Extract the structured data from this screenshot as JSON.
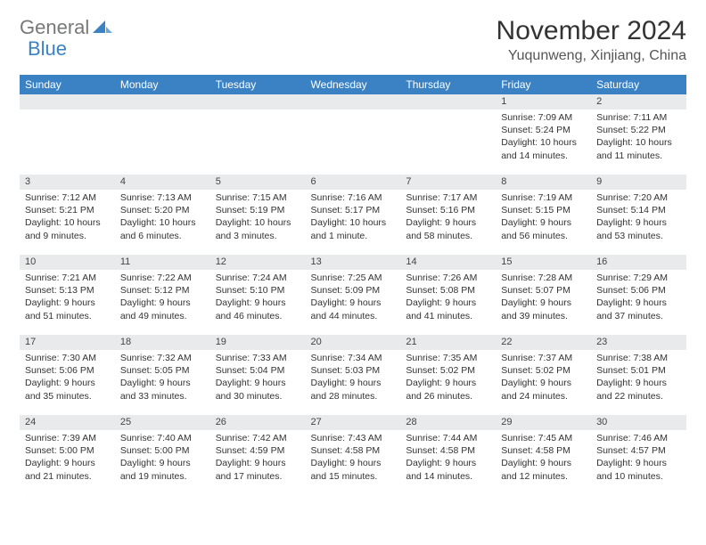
{
  "logo": {
    "text1": "General",
    "text2": "Blue"
  },
  "title": "November 2024",
  "location": "Yuqunweng, Xinjiang, China",
  "colors": {
    "header_bg": "#3b82c4",
    "header_text": "#ffffff",
    "daynum_bg": "#e8eaec",
    "text": "#333333",
    "logo_gray": "#76787a",
    "logo_blue": "#3b82c4"
  },
  "weekdays": [
    "Sunday",
    "Monday",
    "Tuesday",
    "Wednesday",
    "Thursday",
    "Friday",
    "Saturday"
  ],
  "weeks": [
    [
      {
        "n": "",
        "sr": "",
        "ss": "",
        "dl": ""
      },
      {
        "n": "",
        "sr": "",
        "ss": "",
        "dl": ""
      },
      {
        "n": "",
        "sr": "",
        "ss": "",
        "dl": ""
      },
      {
        "n": "",
        "sr": "",
        "ss": "",
        "dl": ""
      },
      {
        "n": "",
        "sr": "",
        "ss": "",
        "dl": ""
      },
      {
        "n": "1",
        "sr": "Sunrise: 7:09 AM",
        "ss": "Sunset: 5:24 PM",
        "dl": "Daylight: 10 hours and 14 minutes."
      },
      {
        "n": "2",
        "sr": "Sunrise: 7:11 AM",
        "ss": "Sunset: 5:22 PM",
        "dl": "Daylight: 10 hours and 11 minutes."
      }
    ],
    [
      {
        "n": "3",
        "sr": "Sunrise: 7:12 AM",
        "ss": "Sunset: 5:21 PM",
        "dl": "Daylight: 10 hours and 9 minutes."
      },
      {
        "n": "4",
        "sr": "Sunrise: 7:13 AM",
        "ss": "Sunset: 5:20 PM",
        "dl": "Daylight: 10 hours and 6 minutes."
      },
      {
        "n": "5",
        "sr": "Sunrise: 7:15 AM",
        "ss": "Sunset: 5:19 PM",
        "dl": "Daylight: 10 hours and 3 minutes."
      },
      {
        "n": "6",
        "sr": "Sunrise: 7:16 AM",
        "ss": "Sunset: 5:17 PM",
        "dl": "Daylight: 10 hours and 1 minute."
      },
      {
        "n": "7",
        "sr": "Sunrise: 7:17 AM",
        "ss": "Sunset: 5:16 PM",
        "dl": "Daylight: 9 hours and 58 minutes."
      },
      {
        "n": "8",
        "sr": "Sunrise: 7:19 AM",
        "ss": "Sunset: 5:15 PM",
        "dl": "Daylight: 9 hours and 56 minutes."
      },
      {
        "n": "9",
        "sr": "Sunrise: 7:20 AM",
        "ss": "Sunset: 5:14 PM",
        "dl": "Daylight: 9 hours and 53 minutes."
      }
    ],
    [
      {
        "n": "10",
        "sr": "Sunrise: 7:21 AM",
        "ss": "Sunset: 5:13 PM",
        "dl": "Daylight: 9 hours and 51 minutes."
      },
      {
        "n": "11",
        "sr": "Sunrise: 7:22 AM",
        "ss": "Sunset: 5:12 PM",
        "dl": "Daylight: 9 hours and 49 minutes."
      },
      {
        "n": "12",
        "sr": "Sunrise: 7:24 AM",
        "ss": "Sunset: 5:10 PM",
        "dl": "Daylight: 9 hours and 46 minutes."
      },
      {
        "n": "13",
        "sr": "Sunrise: 7:25 AM",
        "ss": "Sunset: 5:09 PM",
        "dl": "Daylight: 9 hours and 44 minutes."
      },
      {
        "n": "14",
        "sr": "Sunrise: 7:26 AM",
        "ss": "Sunset: 5:08 PM",
        "dl": "Daylight: 9 hours and 41 minutes."
      },
      {
        "n": "15",
        "sr": "Sunrise: 7:28 AM",
        "ss": "Sunset: 5:07 PM",
        "dl": "Daylight: 9 hours and 39 minutes."
      },
      {
        "n": "16",
        "sr": "Sunrise: 7:29 AM",
        "ss": "Sunset: 5:06 PM",
        "dl": "Daylight: 9 hours and 37 minutes."
      }
    ],
    [
      {
        "n": "17",
        "sr": "Sunrise: 7:30 AM",
        "ss": "Sunset: 5:06 PM",
        "dl": "Daylight: 9 hours and 35 minutes."
      },
      {
        "n": "18",
        "sr": "Sunrise: 7:32 AM",
        "ss": "Sunset: 5:05 PM",
        "dl": "Daylight: 9 hours and 33 minutes."
      },
      {
        "n": "19",
        "sr": "Sunrise: 7:33 AM",
        "ss": "Sunset: 5:04 PM",
        "dl": "Daylight: 9 hours and 30 minutes."
      },
      {
        "n": "20",
        "sr": "Sunrise: 7:34 AM",
        "ss": "Sunset: 5:03 PM",
        "dl": "Daylight: 9 hours and 28 minutes."
      },
      {
        "n": "21",
        "sr": "Sunrise: 7:35 AM",
        "ss": "Sunset: 5:02 PM",
        "dl": "Daylight: 9 hours and 26 minutes."
      },
      {
        "n": "22",
        "sr": "Sunrise: 7:37 AM",
        "ss": "Sunset: 5:02 PM",
        "dl": "Daylight: 9 hours and 24 minutes."
      },
      {
        "n": "23",
        "sr": "Sunrise: 7:38 AM",
        "ss": "Sunset: 5:01 PM",
        "dl": "Daylight: 9 hours and 22 minutes."
      }
    ],
    [
      {
        "n": "24",
        "sr": "Sunrise: 7:39 AM",
        "ss": "Sunset: 5:00 PM",
        "dl": "Daylight: 9 hours and 21 minutes."
      },
      {
        "n": "25",
        "sr": "Sunrise: 7:40 AM",
        "ss": "Sunset: 5:00 PM",
        "dl": "Daylight: 9 hours and 19 minutes."
      },
      {
        "n": "26",
        "sr": "Sunrise: 7:42 AM",
        "ss": "Sunset: 4:59 PM",
        "dl": "Daylight: 9 hours and 17 minutes."
      },
      {
        "n": "27",
        "sr": "Sunrise: 7:43 AM",
        "ss": "Sunset: 4:58 PM",
        "dl": "Daylight: 9 hours and 15 minutes."
      },
      {
        "n": "28",
        "sr": "Sunrise: 7:44 AM",
        "ss": "Sunset: 4:58 PM",
        "dl": "Daylight: 9 hours and 14 minutes."
      },
      {
        "n": "29",
        "sr": "Sunrise: 7:45 AM",
        "ss": "Sunset: 4:58 PM",
        "dl": "Daylight: 9 hours and 12 minutes."
      },
      {
        "n": "30",
        "sr": "Sunrise: 7:46 AM",
        "ss": "Sunset: 4:57 PM",
        "dl": "Daylight: 9 hours and 10 minutes."
      }
    ]
  ]
}
